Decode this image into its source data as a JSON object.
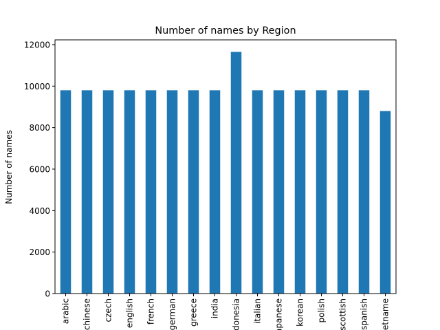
{
  "chart_data": {
    "type": "bar",
    "title": "Number of names by Region",
    "xlabel": "",
    "ylabel": "Number of names",
    "categories": [
      "arabic",
      "chinese",
      "czech",
      "english",
      "french",
      "german",
      "greece",
      "india",
      "indonesia",
      "italian",
      "japanese",
      "korean",
      "polish",
      "scottish",
      "spanish",
      "vietname"
    ],
    "values": [
      9800,
      9800,
      9800,
      9800,
      9800,
      9800,
      9800,
      9800,
      11650,
      9800,
      9800,
      9800,
      9800,
      9800,
      9800,
      8800
    ],
    "ylim": [
      0,
      12230
    ],
    "yticks": [
      0,
      2000,
      4000,
      6000,
      8000,
      10000,
      12000
    ],
    "grid": false,
    "legend": "none",
    "bar_color": "#1f77b4"
  }
}
